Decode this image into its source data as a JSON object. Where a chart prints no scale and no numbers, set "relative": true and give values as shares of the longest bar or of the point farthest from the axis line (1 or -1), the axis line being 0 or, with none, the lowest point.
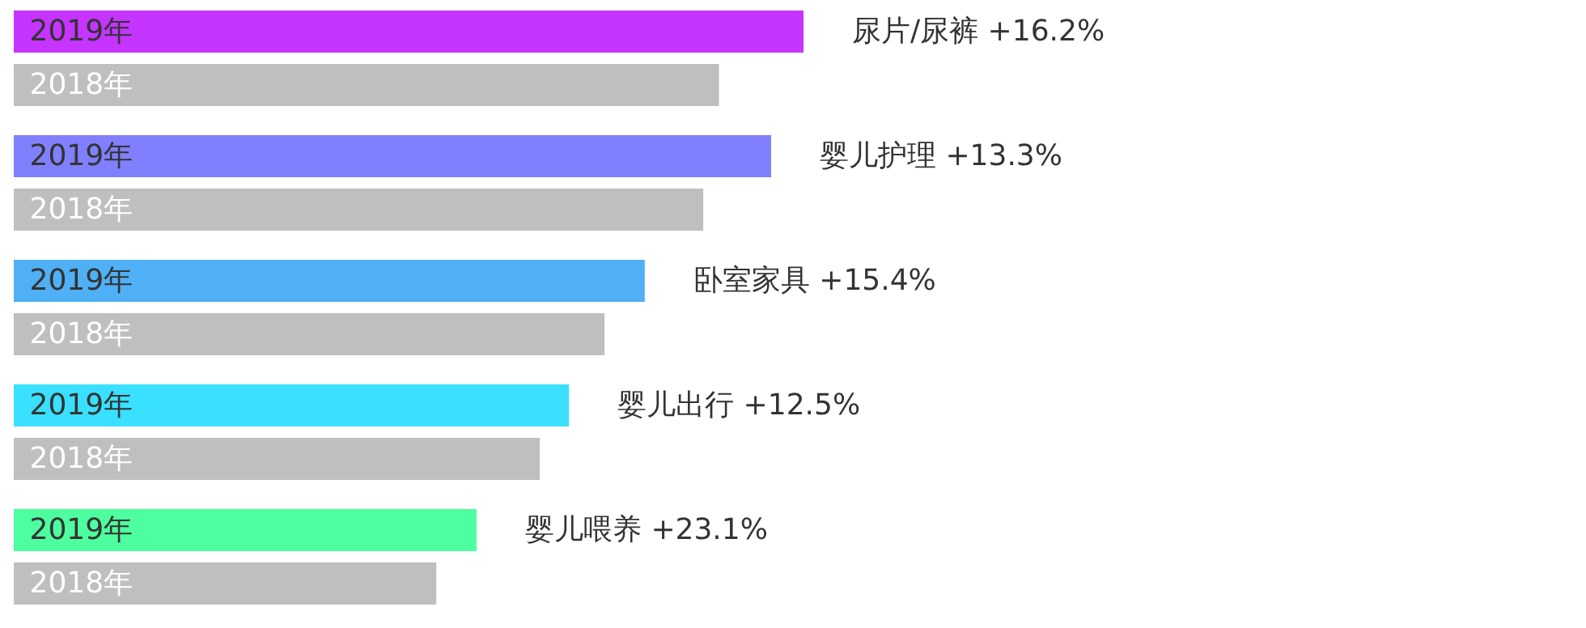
{
  "chart_data": {
    "type": "bar",
    "orientation": "horizontal",
    "relative": true,
    "tick_labels": false,
    "grid": false,
    "annotations": [
      "+16.2%",
      "+13.3%",
      "+15.4%",
      "+12.5%",
      "+23.1%"
    ],
    "categories": [
      "尿片/尿裤",
      "婴儿护理",
      "卧室家具",
      "婴儿出行",
      "婴儿喂养"
    ],
    "series": [
      {
        "name": "2019年",
        "colors": [
          "#c535ff",
          "#8080ff",
          "#4fb0f5",
          "#3ae0ff",
          "#4dff9e"
        ],
        "values": [
          1,
          0.959,
          0.799,
          0.703,
          0.586
        ]
      },
      {
        "name": "2018年",
        "color": "#bfbfbf",
        "values": [
          0.893,
          0.873,
          0.748,
          0.666,
          0.535
        ]
      }
    ]
  }
}
